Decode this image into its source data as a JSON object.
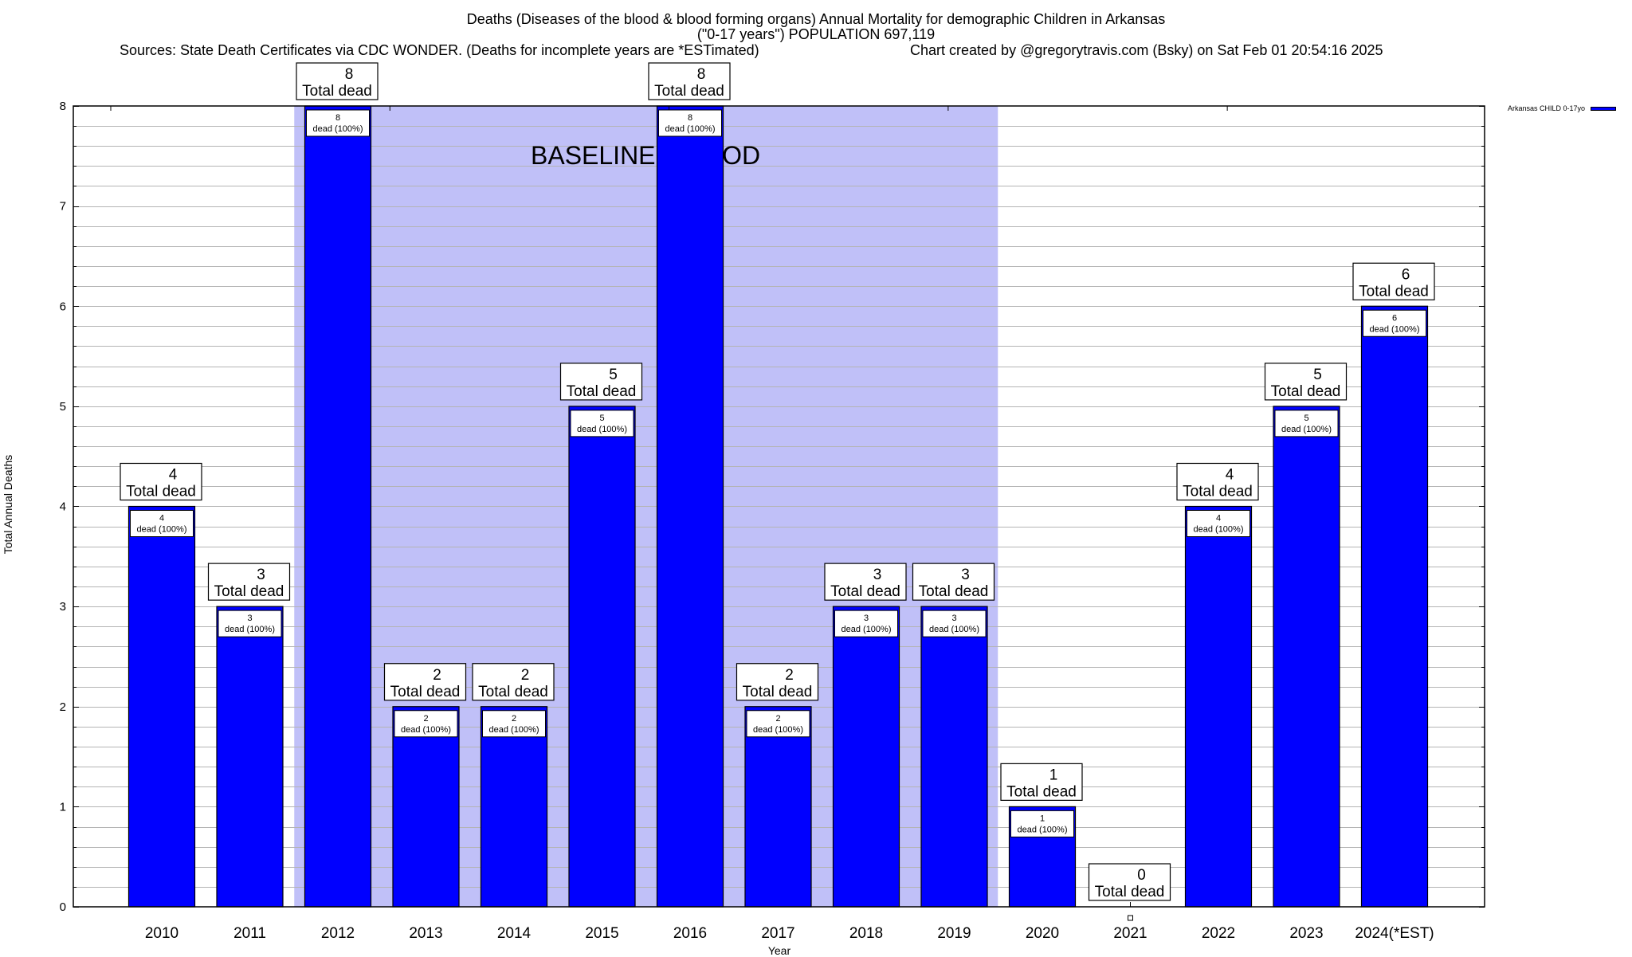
{
  "header": {
    "title_line1": "Deaths (Diseases of the blood & blood forming organs) Annual Mortality for demographic Children in Arkansas",
    "title_line2": "(\"0-17 years\") POPULATION 697,119",
    "sources": "Sources: State Death Certificates via CDC WONDER. (Deaths for incomplete years are *ESTimated)",
    "credit": "Chart created by @gregorytravis.com (Bsky) on Sat Feb 01 20:54:16 2025"
  },
  "legend": {
    "label": "Arkansas CHILD 0-17yo",
    "color": "#0000ff",
    "placement": "top-right, outside plot"
  },
  "colors": {
    "bar": "#0000ff",
    "baseline_band": "#c0c0f8",
    "grid": "#b4b4b4"
  },
  "chart_data": {
    "type": "bar",
    "title": "Deaths (Diseases of the blood & blood forming organs) Annual Mortality for demographic Children in Arkansas",
    "subtitle": "(\"0-17 years\") POPULATION 697,119",
    "xlabel": "Year",
    "ylabel": "Total Annual Deaths",
    "ylim": [
      0,
      8
    ],
    "yticks": [
      0,
      1,
      2,
      3,
      4,
      5,
      6,
      7,
      8
    ],
    "ytick_labels": [
      "0",
      "1",
      "2",
      "3",
      "4",
      "5",
      "6",
      "7",
      "8"
    ],
    "minor_grid_step": 0.2,
    "grid": true,
    "categories": [
      "2010",
      "2011",
      "2012",
      "2013",
      "2014",
      "2015",
      "2016",
      "2017",
      "2018",
      "2019",
      "2020",
      "2021",
      "2022",
      "2023",
      "2024(*EST)"
    ],
    "series": [
      {
        "name": "Arkansas CHILD 0-17yo",
        "values": [
          4,
          3,
          8,
          2,
          2,
          5,
          8,
          2,
          3,
          3,
          1,
          0,
          4,
          5,
          6
        ]
      }
    ],
    "total_label_suffix": "Total dead",
    "inner_label_suffix": "dead (100%)",
    "annotation": {
      "text": "BASELINE PERIOD",
      "span_categories": [
        "2012",
        "2019"
      ]
    }
  }
}
